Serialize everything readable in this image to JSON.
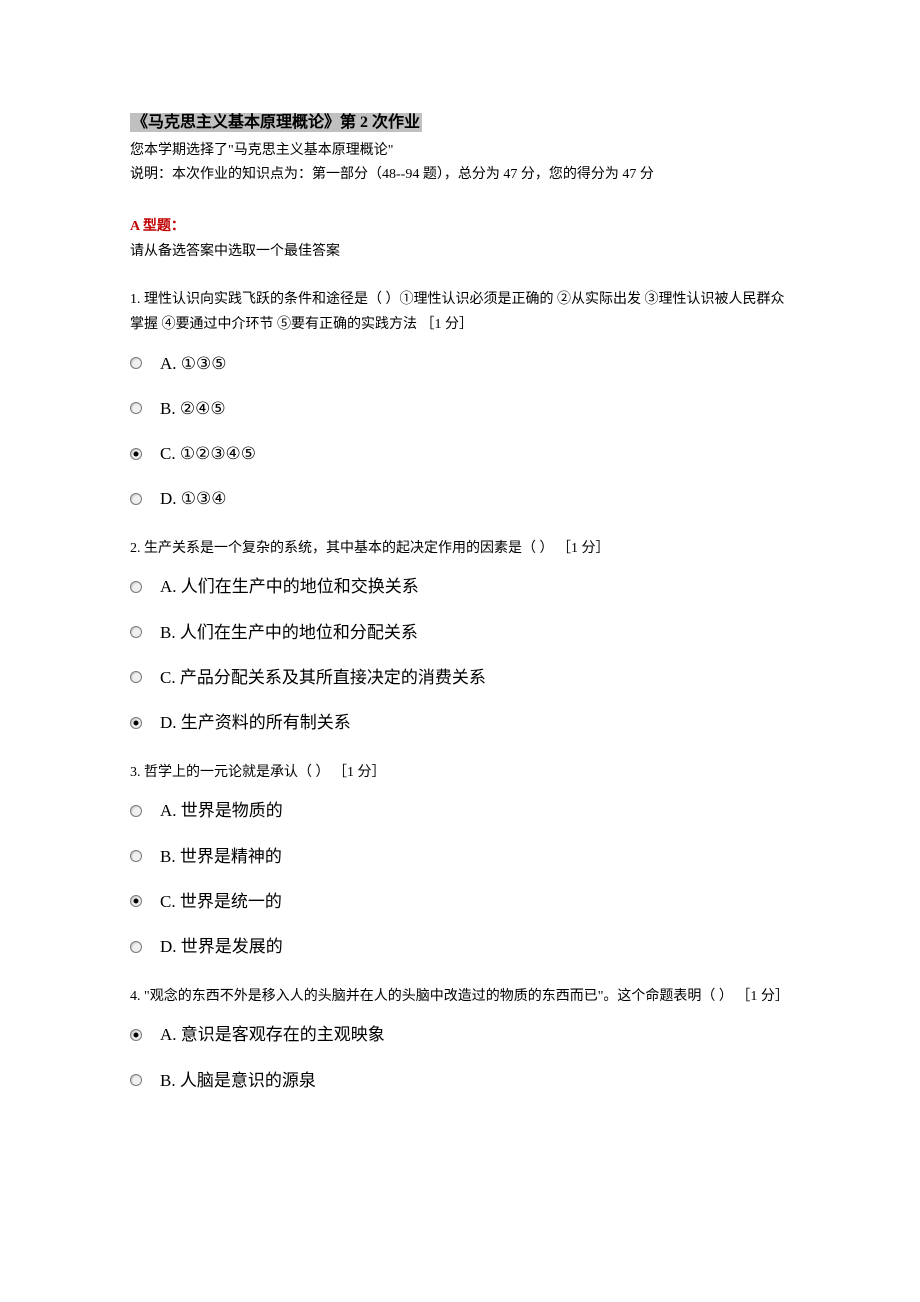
{
  "title": "《马克思主义基本原理概论》第 2 次作业",
  "subtitle": "您本学期选择了\"马克思主义基本原理概论\"",
  "description": "说明：本次作业的知识点为：第一部分（48--94 题），总分为 47 分，您的得分为 47 分",
  "section_header": "A 型题：",
  "section_sub": "请从备选答案中选取一个最佳答案",
  "questions": [
    {
      "number": "1.",
      "text": "理性认识向实践飞跃的条件和途径是（ ）①理性认识必须是正确的 ②从实际出发 ③理性认识被人民群众掌握 ④要通过中介环节 ⑤要有正确的实践方法  ［1 分］",
      "selected": 2,
      "options": [
        "A. ①③⑤",
        "B. ②④⑤",
        "C. ①②③④⑤",
        "D. ①③④"
      ]
    },
    {
      "number": "2.",
      "text": "生产关系是一个复杂的系统，其中基本的起决定作用的因素是（ ）  ［1 分］",
      "selected": 3,
      "options": [
        "A. 人们在生产中的地位和交换关系",
        "B. 人们在生产中的地位和分配关系",
        "C. 产品分配关系及其所直接决定的消费关系",
        "D. 生产资料的所有制关系"
      ]
    },
    {
      "number": "3.",
      "text": "哲学上的一元论就是承认（ ）  ［1 分］",
      "selected": 2,
      "options": [
        "A. 世界是物质的",
        "B. 世界是精神的",
        "C. 世界是统一的",
        "D. 世界是发展的"
      ]
    },
    {
      "number": "4.",
      "text": "\"观念的东西不外是移入人的头脑并在人的头脑中改造过的物质的东西而已\"。这个命题表明（ ）  ［1 分］",
      "selected": 0,
      "options": [
        "A. 意识是客观存在的主观映象",
        "B. 人脑是意识的源泉"
      ]
    }
  ],
  "colors": {
    "title_bg": "#c0c0c0",
    "red_header": "#c00000",
    "text": "#000000",
    "background": "#ffffff"
  },
  "typography": {
    "title_fontsize": 16,
    "body_fontsize": 14,
    "option_fontsize": 17,
    "font_family": "SimSun"
  }
}
